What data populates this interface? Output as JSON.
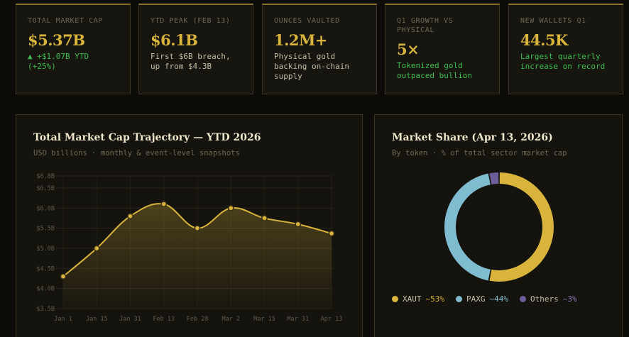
{
  "kpis": [
    {
      "label": "TOTAL MARKET CAP",
      "value": "$5.37B",
      "sub": "▲ +$1.07B YTD (+25%)"
    },
    {
      "label": "YTD PEAK (FEB 13)",
      "value": "$6.1B",
      "sub": "First $6B breach, up from $4.3B"
    },
    {
      "label": "OUNCES VAULTED",
      "value": "1.2M+",
      "sub": "Physical gold backing on-chain supply"
    },
    {
      "label": "Q1 GROWTH VS PHYSICAL",
      "value": "5×",
      "sub": "Tokenized gold outpaced bullion"
    },
    {
      "label": "NEW WALLETS Q1",
      "value": "44.5K",
      "sub": "Largest quarterly increase on record"
    }
  ],
  "line_panel": {
    "title": "Total Market Cap Trajectory — YTD 2026",
    "subtitle": "USD billions · monthly & event-level snapshots"
  },
  "donut_panel": {
    "title": "Market Share (Apr 13, 2026)",
    "subtitle": "By token · % of total sector market cap",
    "legend": [
      {
        "name": "XAUT",
        "pct": "~53%"
      },
      {
        "name": "PAXG",
        "pct": "~44%"
      },
      {
        "name": "Others",
        "pct": "~3%"
      }
    ]
  },
  "colors": {
    "gold": "#d9b43c",
    "blue": "#7fbcd0",
    "purple": "#6c5e9a",
    "green": "#3fbf52"
  },
  "chart_data": [
    {
      "type": "line",
      "title": "Total Market Cap Trajectory — YTD 2026",
      "x": [
        "Jan 1",
        "Jan 15",
        "Jan 31",
        "Feb 13",
        "Feb 28",
        "Mar 2",
        "Mar 15",
        "Mar 31",
        "Apr 13"
      ],
      "series": [
        {
          "values": [
            4.3,
            5.0,
            5.8,
            6.1,
            5.5,
            6.0,
            5.75,
            5.6,
            5.37
          ]
        }
      ],
      "ylim": [
        3.5,
        6.8
      ],
      "yticks": [
        "$3.5B",
        "$4.0B",
        "$4.5B",
        "$5.0B",
        "$5.5B",
        "$6.0B",
        "$6.5B",
        "$6.8B"
      ],
      "ytick_values": [
        3.5,
        4.0,
        4.5,
        5.0,
        5.5,
        6.0,
        6.5,
        6.8
      ],
      "grid": true
    },
    {
      "type": "pie",
      "title": "Market Share (Apr 13, 2026)",
      "categories": [
        "XAUT",
        "PAXG",
        "Others"
      ],
      "values": [
        53,
        44,
        3
      ]
    }
  ]
}
